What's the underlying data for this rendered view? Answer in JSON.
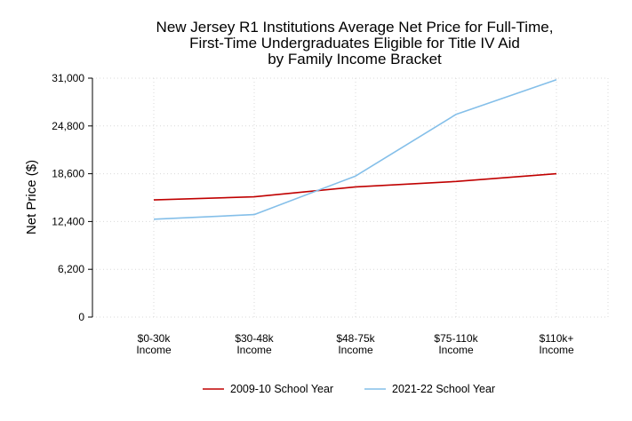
{
  "chart_data": {
    "type": "line",
    "title_lines": [
      "New Jersey R1 Institutions Average Net Price for Full-Time,",
      "First-Time Undergraduates Eligible for Title IV Aid",
      "by Family Income Bracket"
    ],
    "ylabel": "Net Price ($)",
    "xlabel": "",
    "ylim": [
      0,
      31000
    ],
    "yticks": [
      0,
      6200,
      12400,
      18600,
      24800,
      31000
    ],
    "ytick_labels": [
      "0",
      "6,200",
      "12,400",
      "18,600",
      "24,800",
      "31,000"
    ],
    "categories": [
      [
        "$0-30k",
        "Income"
      ],
      [
        "$30-48k",
        "Income"
      ],
      [
        "$48-75k",
        "Income"
      ],
      [
        "$75-110k",
        "Income"
      ],
      [
        "$110k+",
        "Income"
      ]
    ],
    "grid": true,
    "legend_position": "bottom",
    "series": [
      {
        "name": "2009-10 School Year",
        "color": "#c00000",
        "values": [
          15200,
          15600,
          16900,
          17600,
          18600
        ]
      },
      {
        "name": "2021-22 School Year",
        "color": "#84bfe9",
        "values": [
          12700,
          13300,
          18300,
          26300,
          30800
        ]
      }
    ]
  }
}
